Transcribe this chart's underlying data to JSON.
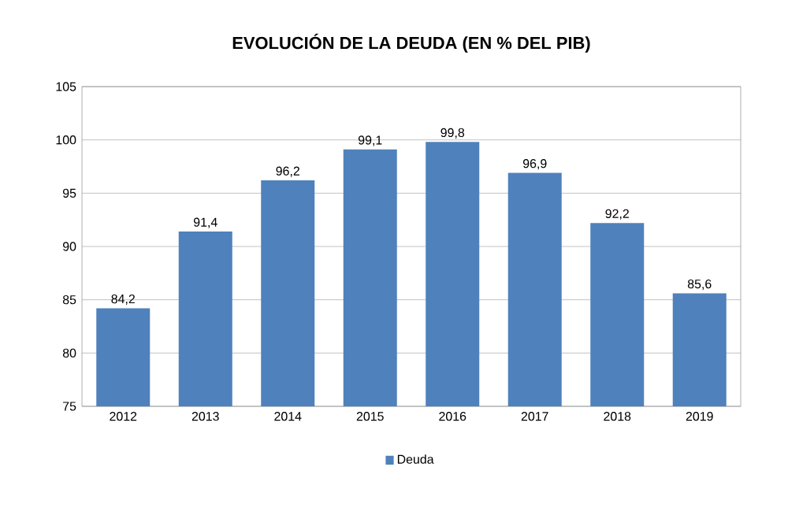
{
  "chart_data": {
    "type": "bar",
    "title": "EVOLUCIÓN DE LA DEUDA (EN % DEL PIB)",
    "categories": [
      "2012",
      "2013",
      "2014",
      "2015",
      "2016",
      "2017",
      "2018",
      "2019"
    ],
    "series": [
      {
        "name": "Deuda",
        "color": "#4f81bd",
        "values": [
          84.2,
          91.4,
          96.2,
          99.1,
          99.8,
          96.9,
          92.2,
          85.6
        ],
        "value_labels": [
          "84,2",
          "91,4",
          "96,2",
          "99,1",
          "99,8",
          "96,9",
          "92,2",
          "85,6"
        ]
      }
    ],
    "ylim": [
      75,
      105
    ],
    "yticks": [
      75,
      80,
      85,
      90,
      95,
      100,
      105
    ],
    "grid": "y",
    "legend": "bottom"
  }
}
